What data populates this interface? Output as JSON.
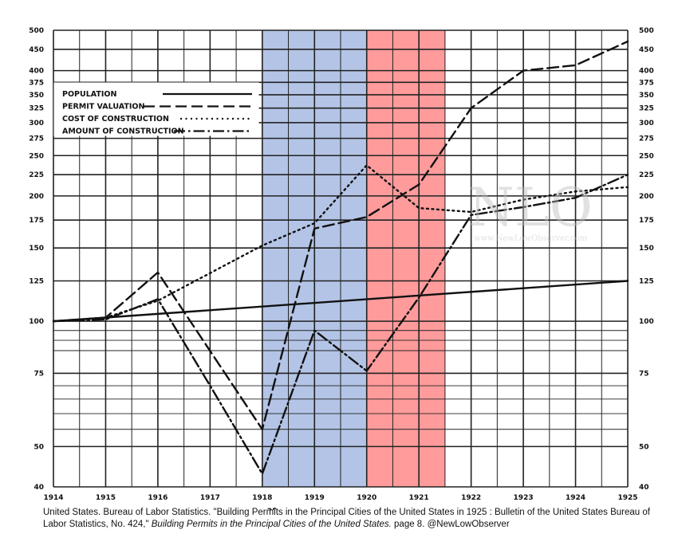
{
  "colors": {
    "shade_1": "#b3c4e6",
    "shade_2": "#ff9b9b",
    "line": "#111111",
    "grid": "#222222"
  },
  "chart_data": {
    "type": "line",
    "y_scale": "log",
    "title": "",
    "xlabel": "",
    "ylabel": "",
    "ylim": [
      40,
      500
    ],
    "xlim": [
      1914,
      1925
    ],
    "x_ticks": [
      {
        "value": 1914,
        "label": "1914"
      },
      {
        "value": 1915,
        "label": "1915"
      },
      {
        "value": 1916,
        "label": "1916"
      },
      {
        "value": 1917,
        "label": "1917"
      },
      {
        "value": 1918,
        "label": "1918"
      },
      {
        "value": 1919,
        "label": "1919"
      },
      {
        "value": 1920,
        "label": "1920"
      },
      {
        "value": 1921,
        "label": "1921"
      },
      {
        "value": 1922,
        "label": "1922"
      },
      {
        "value": 1923,
        "label": "1923"
      },
      {
        "value": 1924,
        "label": "1924"
      },
      {
        "value": 1925,
        "label": "1925"
      }
    ],
    "y_ticks": [
      {
        "value": 40,
        "label": "40"
      },
      {
        "value": 50,
        "label": "50"
      },
      {
        "value": 75,
        "label": "75"
      },
      {
        "value": 100,
        "label": "100"
      },
      {
        "value": 125,
        "label": "125"
      },
      {
        "value": 150,
        "label": "150"
      },
      {
        "value": 175,
        "label": "175"
      },
      {
        "value": 200,
        "label": "200"
      },
      {
        "value": 225,
        "label": "225"
      },
      {
        "value": 250,
        "label": "250"
      },
      {
        "value": 275,
        "label": "275"
      },
      {
        "value": 300,
        "label": "300"
      },
      {
        "value": 325,
        "label": "325"
      },
      {
        "value": 350,
        "label": "350"
      },
      {
        "value": 375,
        "label": "375"
      },
      {
        "value": 400,
        "label": "400"
      },
      {
        "value": 450,
        "label": "450"
      },
      {
        "value": 500,
        "label": "500"
      }
    ],
    "shaded_regions": [
      {
        "from": 1918,
        "to": 1920,
        "color_key": "shade_1"
      },
      {
        "from": 1920,
        "to": 1921.5,
        "color_key": "shade_2"
      }
    ],
    "legend": {
      "position": "top-left",
      "entries": [
        {
          "label": "POPULATION",
          "series": "population"
        },
        {
          "label": "PERMIT VALUATION",
          "series": "permit_valuation"
        },
        {
          "label": "COST OF CONSTRUCTION",
          "series": "cost_of_construction"
        },
        {
          "label": "AMOUNT OF CONSTRUCTION",
          "series": "amount_of_construction"
        }
      ]
    },
    "series": [
      {
        "id": "population",
        "name": "POPULATION",
        "style": "solid",
        "x": [
          1914,
          1925
        ],
        "y": [
          100,
          125
        ]
      },
      {
        "id": "permit_valuation",
        "name": "PERMIT VALUATION",
        "style": "dashed",
        "x": [
          1914,
          1915,
          1916,
          1918,
          1919,
          1920,
          1921,
          1922,
          1923,
          1924,
          1925
        ],
        "y": [
          100,
          102,
          131,
          55,
          167,
          178,
          213,
          325,
          400,
          412,
          470
        ]
      },
      {
        "id": "cost_of_construction",
        "name": "COST OF CONSTRUCTION",
        "style": "dotted",
        "x": [
          1914,
          1915,
          1916,
          1918,
          1919,
          1920,
          1921,
          1922,
          1923,
          1924,
          1925
        ],
        "y": [
          100,
          102,
          112,
          152,
          172,
          237,
          187,
          183,
          196,
          205,
          210
        ]
      },
      {
        "id": "amount_of_construction",
        "name": "AMOUNT OF CONSTRUCTION",
        "style": "dashdot",
        "x": [
          1914,
          1915,
          1916,
          1917,
          1918,
          1919,
          1920,
          1921,
          1922,
          1923,
          1924,
          1925
        ],
        "y": [
          100,
          101,
          113,
          70,
          43,
          95,
          76,
          114,
          180,
          188,
          198,
          225
        ]
      }
    ],
    "annotations": [
      {
        "text": "25",
        "note": "digits printed beside the 1918 tick"
      }
    ]
  },
  "watermark": {
    "logo": "NLO",
    "url": "www.NewLowObserver.com"
  },
  "caption": {
    "part1": "United States. Bureau of Labor Statistics. \"Building Permits in the Principal Cities of the United States in 1925 : Bulletin of the United States Bureau of Labor Statistics, No. 424,\" ",
    "italic": "Building Permits in the Principal Cities of the United States.",
    "part2": " page 8. @NewLowObserver"
  }
}
